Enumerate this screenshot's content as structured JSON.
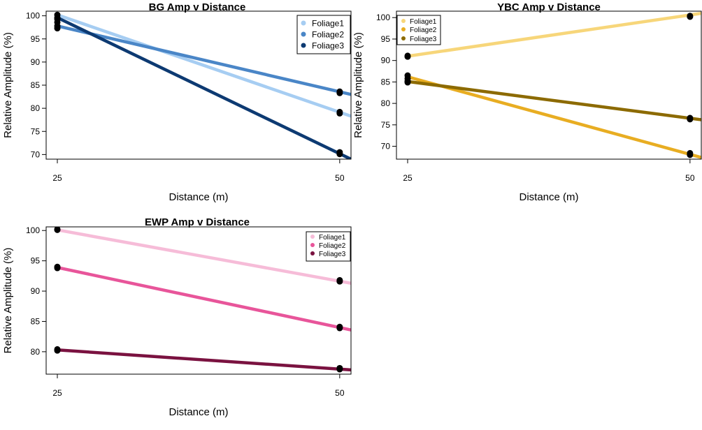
{
  "chart_data": [
    {
      "type": "scatter",
      "title": "BG Amp v Distance",
      "xlabel": "Distance (m)",
      "ylabel": "Relative Amplitude (%)",
      "x_ticks": [
        25,
        50
      ],
      "y_ticks": [
        70,
        75,
        80,
        85,
        90,
        95,
        100
      ],
      "ylim": [
        69,
        101
      ],
      "grid": false,
      "legend_position": "top-right",
      "series": [
        {
          "name": "Foliage1",
          "color": "#a6cdf2",
          "x": [
            25,
            25,
            50,
            50
          ],
          "y": [
            100.2,
            99.3,
            79.2,
            78.9
          ],
          "fit": [
            [
              25,
              100.2
            ],
            [
              51,
              78.3
            ]
          ]
        },
        {
          "name": "Foliage2",
          "color": "#4a86c7",
          "x": [
            25,
            25,
            50,
            50
          ],
          "y": [
            97.8,
            97.3,
            83.6,
            83.3
          ],
          "fit": [
            [
              25,
              97.8
            ],
            [
              51,
              83.0
            ]
          ]
        },
        {
          "name": "Foliage3",
          "color": "#0d3a72",
          "x": [
            25,
            25,
            50,
            50
          ],
          "y": [
            99.6,
            98.6,
            70.5,
            70.1
          ],
          "fit": [
            [
              25,
              99.6
            ],
            [
              51,
              69.0
            ]
          ]
        }
      ]
    },
    {
      "type": "scatter",
      "title": "YBC Amp v Distance",
      "xlabel": "Distance (m)",
      "ylabel": "Relative Amplitude (%)",
      "x_ticks": [
        25,
        50
      ],
      "y_ticks": [
        70,
        75,
        80,
        85,
        90,
        95,
        100
      ],
      "ylim": [
        67,
        101.5
      ],
      "grid": false,
      "legend_position": "top-left",
      "series": [
        {
          "name": "Foliage1",
          "color": "#f7d67a",
          "x": [
            25,
            25,
            50,
            50
          ],
          "y": [
            90.9,
            91.1,
            100.2,
            100.4
          ],
          "fit": [
            [
              25,
              91.0
            ],
            [
              51,
              101.0
            ]
          ]
        },
        {
          "name": "Foliage2",
          "color": "#e8ad22",
          "x": [
            25,
            25,
            50,
            50
          ],
          "y": [
            86.5,
            85.8,
            68.4,
            68.0
          ],
          "fit": [
            [
              25,
              86.2
            ],
            [
              51,
              67.4
            ]
          ]
        },
        {
          "name": "Foliage3",
          "color": "#8c6a00",
          "x": [
            25,
            25,
            50,
            50
          ],
          "y": [
            85.2,
            84.9,
            76.6,
            76.3
          ],
          "fit": [
            [
              25,
              85.1
            ],
            [
              51,
              76.2
            ]
          ]
        }
      ]
    },
    {
      "type": "scatter",
      "title": "EWP Amp v Distance",
      "xlabel": "Distance (m)",
      "ylabel": "Relative Amplitude (%)",
      "x_ticks": [
        25,
        50
      ],
      "y_ticks": [
        80,
        85,
        90,
        95,
        100
      ],
      "ylim": [
        76.3,
        100.6
      ],
      "grid": false,
      "legend_position": "top-right",
      "series": [
        {
          "name": "Foliage1",
          "color": "#f6bcd8",
          "x": [
            25,
            25,
            50,
            50
          ],
          "y": [
            100.2,
            100.1,
            91.8,
            91.6
          ],
          "fit": [
            [
              25,
              100.1
            ],
            [
              51,
              91.3
            ]
          ]
        },
        {
          "name": "Foliage2",
          "color": "#e8559a",
          "x": [
            25,
            25,
            50,
            50
          ],
          "y": [
            94.0,
            93.8,
            84.1,
            83.9
          ],
          "fit": [
            [
              25,
              93.9
            ],
            [
              51,
              83.6
            ]
          ]
        },
        {
          "name": "Foliage3",
          "color": "#7a1240",
          "x": [
            25,
            25,
            50,
            50
          ],
          "y": [
            80.4,
            80.2,
            77.3,
            77.1
          ],
          "fit": [
            [
              25,
              80.3
            ],
            [
              51,
              77.0
            ]
          ]
        }
      ]
    }
  ]
}
